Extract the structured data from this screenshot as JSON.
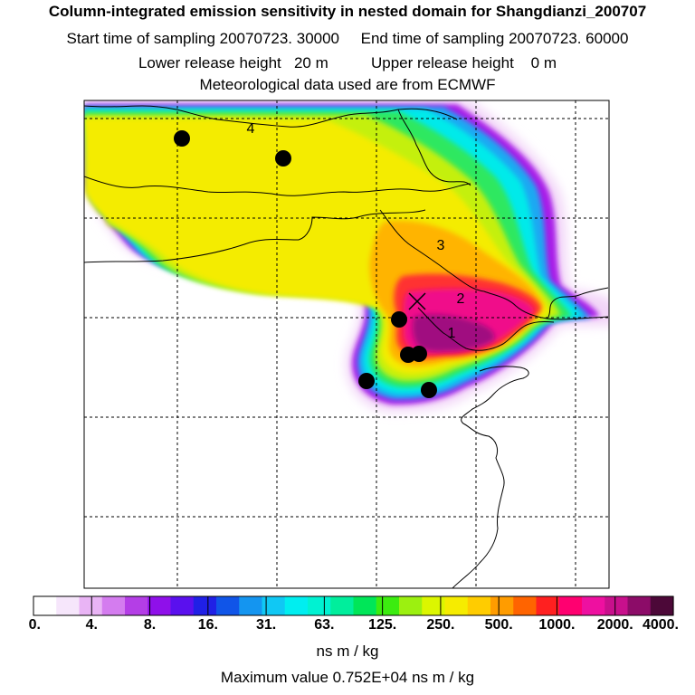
{
  "header": {
    "title": "Column-integrated emission sensitivity in nested domain for Shangdianzi_200707",
    "sampling_line": "Start time of sampling 20070723. 30000     End time of sampling 20070723. 60000",
    "release_line": "Lower release height   20 m          Upper release height    0 m",
    "met_line": "Meteorological data used are from ECMWF"
  },
  "chart_data": {
    "type": "heatmap",
    "title": "Column-integrated emission sensitivity in nested domain for Shangdianzi_200707",
    "color_scale": {
      "unit_label": "ns m / kg",
      "tick_labels": [
        "0.",
        "4.",
        "8.",
        "16.",
        "31.",
        "63.",
        "125.",
        "250.",
        "500.",
        "1000.",
        "2000.",
        "4000."
      ],
      "tick_values": [
        0,
        4,
        8,
        16,
        31,
        63,
        125,
        250,
        500,
        1000,
        2000,
        4000
      ],
      "colors": [
        "#ffffff",
        "#f6e6fb",
        "#e9b4f5",
        "#d47cef",
        "#b43ee6",
        "#8f10ea",
        "#5a10ee",
        "#2020e6",
        "#1055e8",
        "#1495f0",
        "#10c8f4",
        "#00eef0",
        "#00f2d2",
        "#00ee9c",
        "#00e658",
        "#3cec10",
        "#9cf010",
        "#dcf600",
        "#f6ec00",
        "#ffcc00",
        "#ff9c00",
        "#ff6400",
        "#ff2020",
        "#ff0070",
        "#ee10a0",
        "#c8108c",
        "#8c0c68",
        "#4c0838"
      ]
    },
    "max_value_text": "Maximum value  0.752E+04 ns m / kg",
    "contour_labels": [
      "4",
      "3",
      "2",
      "1"
    ],
    "grid": true
  }
}
